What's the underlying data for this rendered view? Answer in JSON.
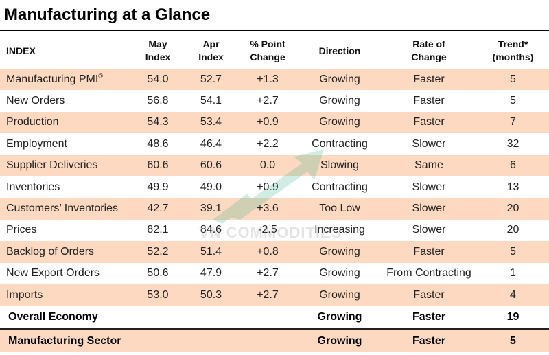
{
  "title": "Manufacturing at a Glance",
  "columns": {
    "index": "INDEX",
    "may": [
      "May",
      "Index"
    ],
    "apr": [
      "Apr",
      "Index"
    ],
    "change": [
      "% Point",
      "Change"
    ],
    "direction": "Direction",
    "rate": [
      "Rate of",
      "Change"
    ],
    "trend": [
      "Trend*",
      "(months)"
    ]
  },
  "rows": [
    {
      "name": "Manufacturing PMI",
      "mark": "®",
      "may": "54.0",
      "apr": "52.7",
      "change": "+1.3",
      "direction": "Growing",
      "rate": "Faster",
      "trend": "5"
    },
    {
      "name": "New Orders",
      "may": "56.8",
      "apr": "54.1",
      "change": "+2.7",
      "direction": "Growing",
      "rate": "Faster",
      "trend": "5"
    },
    {
      "name": "Production",
      "may": "54.3",
      "apr": "53.4",
      "change": "+0.9",
      "direction": "Growing",
      "rate": "Faster",
      "trend": "7"
    },
    {
      "name": "Employment",
      "may": "48.6",
      "apr": "46.4",
      "change": "+2.2",
      "direction": "Contracting",
      "rate": "Slower",
      "trend": "32"
    },
    {
      "name": "Supplier Deliveries",
      "may": "60.6",
      "apr": "60.6",
      "change": "0.0",
      "direction": "Slowing",
      "rate": "Same",
      "trend": "6"
    },
    {
      "name": "Inventories",
      "may": "49.9",
      "apr": "49.0",
      "change": "+0.9",
      "direction": "Contracting",
      "rate": "Slower",
      "trend": "13"
    },
    {
      "name": "Customers’ Inventories",
      "may": "42.7",
      "apr": "39.1",
      "change": "+3.6",
      "direction": "Too Low",
      "rate": "Slower",
      "trend": "20"
    },
    {
      "name": "Prices",
      "may": "82.1",
      "apr": "84.6",
      "change": "-2.5",
      "direction": "Increasing",
      "rate": "Slower",
      "trend": "20"
    },
    {
      "name": "Backlog of Orders",
      "may": "52.2",
      "apr": "51.4",
      "change": "+0.8",
      "direction": "Growing",
      "rate": "Faster",
      "trend": "5"
    },
    {
      "name": "New Export Orders",
      "may": "50.6",
      "apr": "47.9",
      "change": "+2.7",
      "direction": "Growing",
      "rate": "From Contracting",
      "trend": "1"
    },
    {
      "name": "Imports",
      "may": "53.0",
      "apr": "50.3",
      "change": "+2.7",
      "direction": "Growing",
      "rate": "Faster",
      "trend": "4"
    }
  ],
  "summary": [
    {
      "name": "Overall Economy",
      "direction": "Growing",
      "rate": "Faster",
      "trend": "19"
    },
    {
      "name": "Manufacturing Sector",
      "direction": "Growing",
      "rate": "Faster",
      "trend": "5"
    }
  ],
  "watermark": "VN COMMODITIES",
  "colors": {
    "row_shade": "#fcd9c0",
    "rule": "#000000",
    "watermark_arrow": "#2fae8a"
  }
}
